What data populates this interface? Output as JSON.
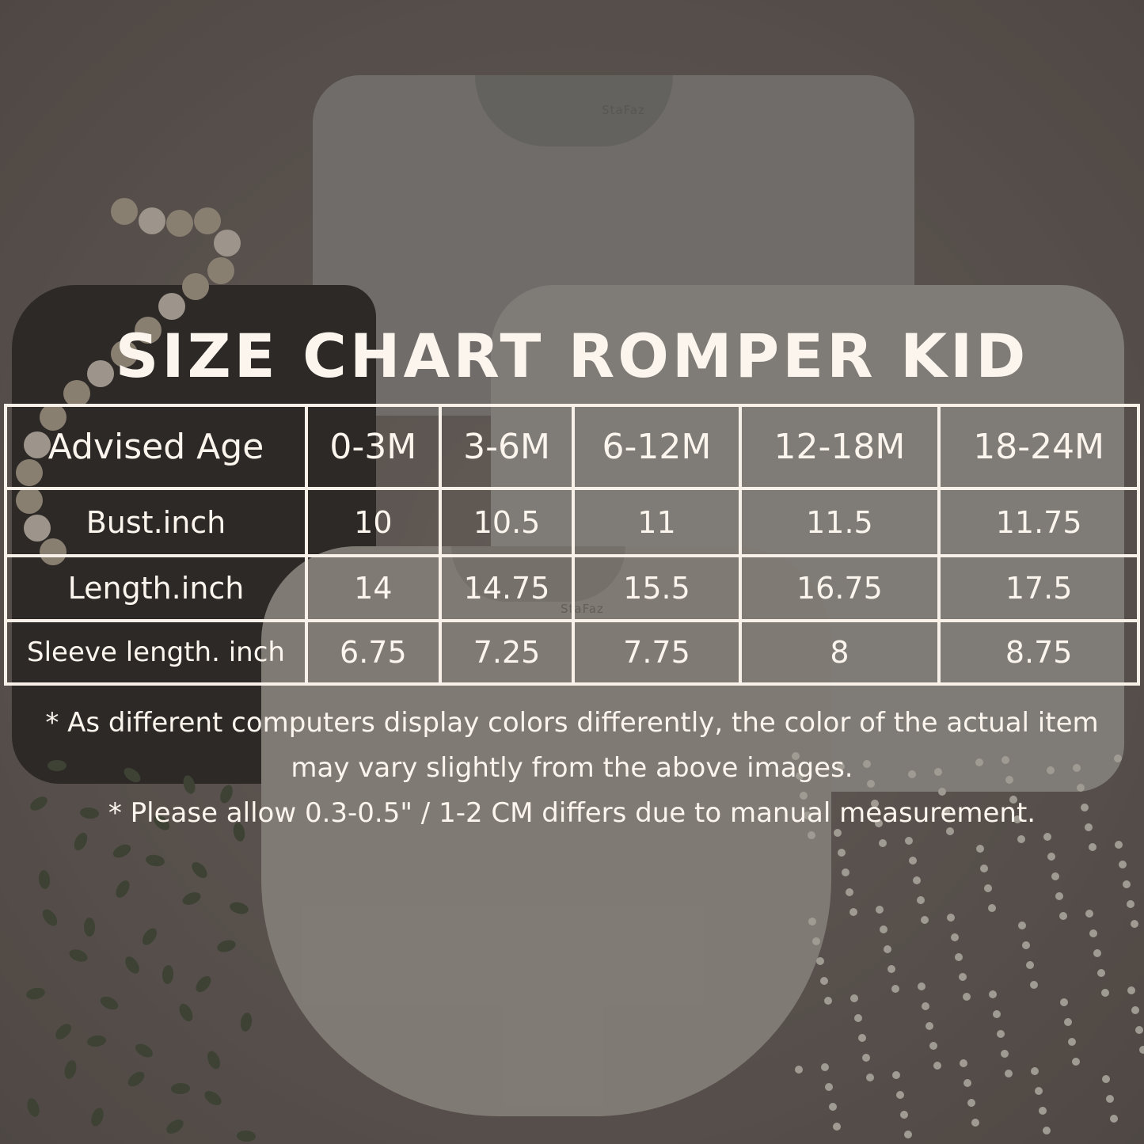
{
  "title": "SIZE CHART ROMPER KID",
  "brand_logo_text": "StaFaz",
  "table": {
    "headers": [
      "Advised Age",
      "0-3M",
      "3-6M",
      "6-12M",
      "12-18M",
      "18-24M"
    ],
    "rows": [
      [
        "Bust.inch",
        "10",
        "10.5",
        "11",
        "11.5",
        "11.75"
      ],
      [
        "Length.inch",
        "14",
        "14.75",
        "15.5",
        "16.75",
        "17.5"
      ],
      [
        "Sleeve length. inch",
        "6.75",
        "7.25",
        "7.75",
        "8",
        "8.75"
      ]
    ]
  },
  "notes": [
    "* As different computers display colors differently, the color of the actual item may vary slightly from the above images.",
    "* Please allow 0.3-0.5\" / 1-2 CM differs due to manual measurement."
  ]
}
